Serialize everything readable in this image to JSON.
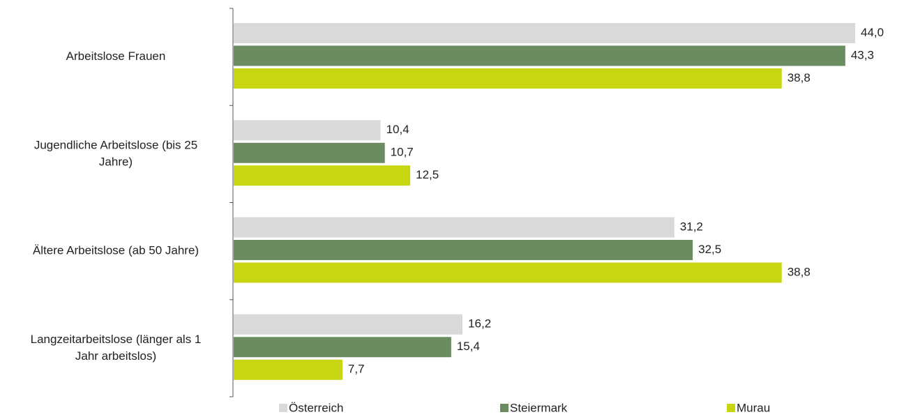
{
  "chart_data": {
    "type": "bar",
    "orientation": "horizontal",
    "categories": [
      [
        "Arbeitslose Frauen"
      ],
      [
        "Jugendliche Arbeitslose (bis 25",
        "Jahre)"
      ],
      [
        "Ältere Arbeitslose (ab 50 Jahre)"
      ],
      [
        "Langzeitarbeitslose (länger als 1",
        "Jahr arbeitslos)"
      ]
    ],
    "series": [
      {
        "name": "Österreich",
        "color": "#d9d9d9",
        "values": [
          44.0,
          10.4,
          31.2,
          16.2
        ],
        "labels": [
          "44,0",
          "10,4",
          "31,2",
          "16,2"
        ]
      },
      {
        "name": "Steiermark",
        "color": "#6a8c5f",
        "values": [
          43.3,
          10.7,
          32.5,
          15.4
        ],
        "labels": [
          "43,3",
          "10,7",
          "32,5",
          "15,4"
        ]
      },
      {
        "name": "Murau",
        "color": "#c8d511",
        "values": [
          38.8,
          12.5,
          38.8,
          7.7
        ],
        "labels": [
          "38,8",
          "12,5",
          "38,8",
          "7,7"
        ]
      }
    ],
    "xlim": [
      0,
      44
    ],
    "legend_position": "bottom",
    "grid": false,
    "data_labels": true
  }
}
